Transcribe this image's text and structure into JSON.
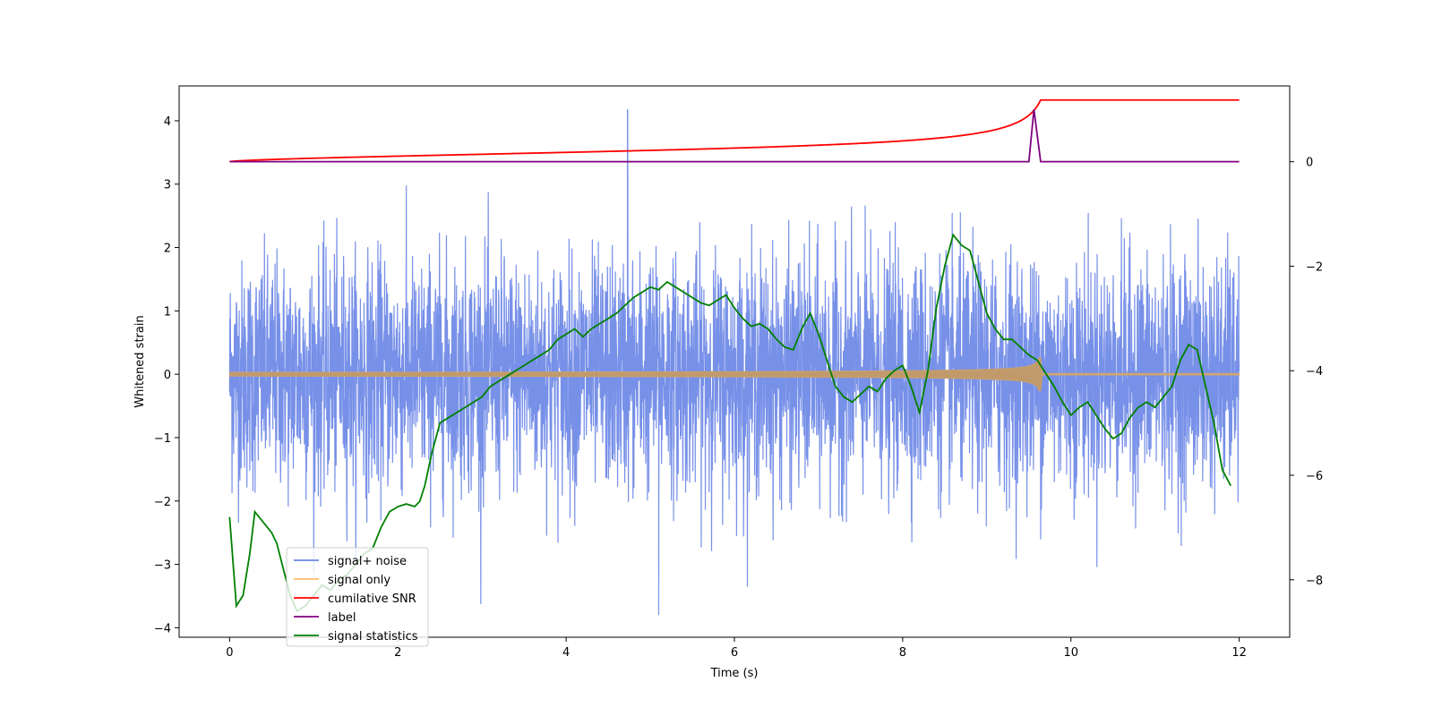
{
  "chart_data": {
    "type": "line",
    "title": "",
    "xlabel": "Time (s)",
    "ylabel": "Whitened strain",
    "xlim": [
      -0.6,
      12.6
    ],
    "ylim": [
      -4.15,
      4.55
    ],
    "y2lim": [
      -9.1,
      1.45
    ],
    "x_ticks": [
      0,
      2,
      4,
      6,
      8,
      10,
      12
    ],
    "y_ticks": [
      -4,
      -3,
      -2,
      -1,
      0,
      1,
      2,
      3,
      4
    ],
    "y2_ticks": [
      -8,
      -6,
      -4,
      -2,
      0
    ],
    "legend_position": "lower-left",
    "series": [
      {
        "name": "signal+ noise",
        "axis": "left",
        "color": "#6b87e6",
        "description_values": {
          "x_start": 0,
          "x_end": 12,
          "approx_min": -3.8,
          "approx_max": 4.2,
          "spike_at": 4.73,
          "spike_value": 4.18,
          "dip_at": 5.1,
          "dip_value": -3.8
        }
      },
      {
        "name": "signal only",
        "axis": "left",
        "color": "#ffbf66",
        "description_values": {
          "x_start": 0,
          "x_end": 12,
          "merger_time": 9.64,
          "peak_amplitude": 0.55,
          "start_amplitude": 0.03
        }
      },
      {
        "name": "cumilative SNR",
        "axis": "right",
        "color": "#ff0000",
        "x": [
          0,
          1,
          2,
          3,
          4,
          5,
          6,
          7,
          8,
          8.5,
          9,
          9.3,
          9.5,
          9.64,
          12
        ],
        "y": [
          0,
          0.1,
          0.16,
          0.22,
          0.28,
          0.35,
          0.44,
          0.56,
          0.72,
          0.83,
          0.95,
          1.04,
          1.11,
          1.18,
          1.18
        ]
      },
      {
        "name": "label",
        "axis": "right",
        "color": "#800080",
        "x": [
          0,
          9.5,
          9.56,
          9.64,
          12
        ],
        "y": [
          0,
          0,
          1.0,
          0,
          0
        ]
      },
      {
        "name": "signal statistics",
        "axis": "right",
        "color": "#008000",
        "x": [
          0.0,
          0.08,
          0.16,
          0.24,
          0.3,
          0.4,
          0.5,
          0.56,
          0.64,
          0.72,
          0.8,
          0.9,
          1.0,
          1.1,
          1.2,
          1.3,
          1.4,
          1.5,
          1.6,
          1.7,
          1.8,
          1.9,
          2.0,
          2.1,
          2.2,
          2.26,
          2.32,
          2.4,
          2.5,
          2.6,
          2.7,
          2.8,
          2.9,
          3.0,
          3.1,
          3.2,
          3.3,
          3.4,
          3.5,
          3.6,
          3.7,
          3.8,
          3.9,
          4.0,
          4.1,
          4.2,
          4.3,
          4.4,
          4.5,
          4.6,
          4.7,
          4.8,
          4.9,
          5.0,
          5.1,
          5.2,
          5.3,
          5.4,
          5.5,
          5.6,
          5.7,
          5.8,
          5.9,
          6.0,
          6.1,
          6.2,
          6.3,
          6.4,
          6.5,
          6.6,
          6.7,
          6.8,
          6.9,
          7.0,
          7.1,
          7.2,
          7.3,
          7.4,
          7.5,
          7.6,
          7.7,
          7.8,
          7.9,
          8.0,
          8.1,
          8.2,
          8.3,
          8.4,
          8.5,
          8.6,
          8.7,
          8.8,
          8.9,
          9.0,
          9.1,
          9.2,
          9.3,
          9.4,
          9.5,
          9.6,
          9.7,
          9.8,
          9.9,
          10.0,
          10.1,
          10.2,
          10.3,
          10.4,
          10.5,
          10.6,
          10.7,
          10.8,
          10.9,
          11.0,
          11.1,
          11.2,
          11.3,
          11.4,
          11.5,
          11.6,
          11.7,
          11.8,
          11.9
        ],
        "y": [
          -6.8,
          -8.5,
          -8.3,
          -7.5,
          -6.7,
          -6.9,
          -7.1,
          -7.3,
          -7.8,
          -8.3,
          -8.6,
          -8.5,
          -8.3,
          -8.1,
          -8.2,
          -8.0,
          -7.9,
          -7.7,
          -7.5,
          -7.4,
          -7.0,
          -6.7,
          -6.6,
          -6.55,
          -6.6,
          -6.5,
          -6.2,
          -5.6,
          -5.0,
          -4.9,
          -4.8,
          -4.7,
          -4.6,
          -4.5,
          -4.3,
          -4.2,
          -4.1,
          -4.0,
          -3.9,
          -3.8,
          -3.7,
          -3.6,
          -3.4,
          -3.3,
          -3.2,
          -3.35,
          -3.2,
          -3.1,
          -3.0,
          -2.9,
          -2.75,
          -2.6,
          -2.5,
          -2.4,
          -2.45,
          -2.3,
          -2.4,
          -2.5,
          -2.6,
          -2.7,
          -2.75,
          -2.65,
          -2.55,
          -2.8,
          -3.0,
          -3.15,
          -3.1,
          -3.2,
          -3.4,
          -3.55,
          -3.6,
          -3.2,
          -2.9,
          -3.3,
          -3.8,
          -4.3,
          -4.5,
          -4.6,
          -4.45,
          -4.3,
          -4.4,
          -4.15,
          -4.0,
          -3.9,
          -4.3,
          -4.8,
          -4.0,
          -2.8,
          -2.0,
          -1.4,
          -1.6,
          -1.7,
          -2.3,
          -2.9,
          -3.2,
          -3.4,
          -3.4,
          -3.55,
          -3.7,
          -3.8,
          -4.05,
          -4.3,
          -4.6,
          -4.85,
          -4.7,
          -4.6,
          -4.85,
          -5.1,
          -5.3,
          -5.2,
          -4.9,
          -4.7,
          -4.6,
          -4.7,
          -4.5,
          -4.3,
          -3.8,
          -3.5,
          -3.6,
          -4.3,
          -5.0,
          -5.9,
          -6.2
        ]
      }
    ]
  },
  "legend": {
    "items": [
      {
        "label": "signal+ noise",
        "color": "#6b87e6"
      },
      {
        "label": "signal only",
        "color": "#ffbf66"
      },
      {
        "label": "cumilative SNR",
        "color": "#ff0000"
      },
      {
        "label": "label",
        "color": "#800080"
      },
      {
        "label": "signal statistics",
        "color": "#008000"
      }
    ]
  }
}
